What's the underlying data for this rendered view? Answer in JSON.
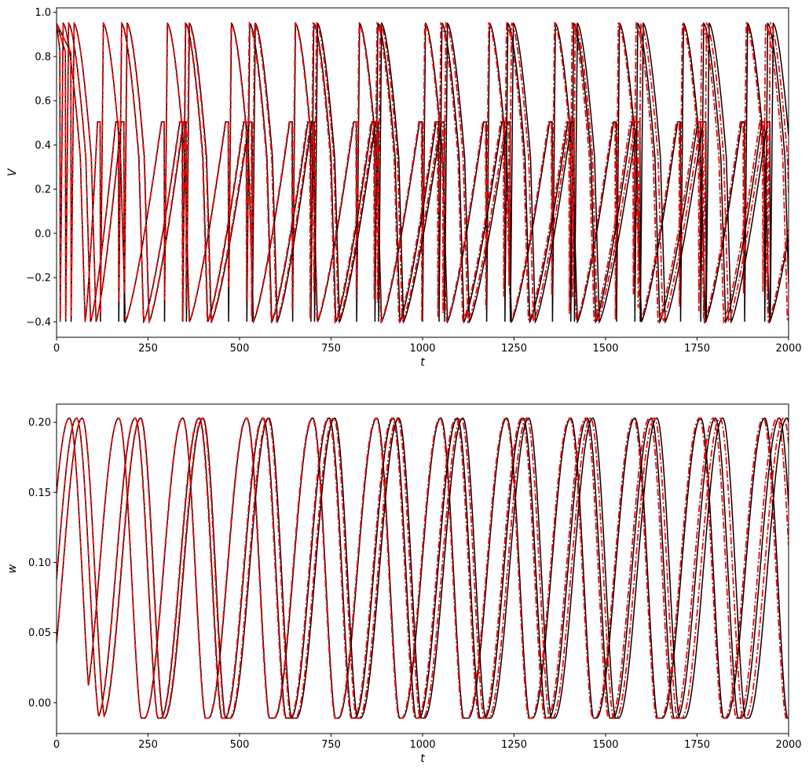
{
  "chart_data": [
    {
      "type": "line",
      "xlabel": "t",
      "ylabel": "V",
      "xlim": [
        0,
        2000
      ],
      "ylim": [
        -0.47,
        1.02
      ],
      "xticks": [
        0,
        250,
        500,
        750,
        1000,
        1250,
        1500,
        1750,
        2000
      ],
      "xtick_labels": [
        "0",
        "250",
        "500",
        "750",
        "1000",
        "1250",
        "1500",
        "1750",
        "2000"
      ],
      "yticks": [
        -0.4,
        -0.2,
        0.0,
        0.2,
        0.4,
        0.6,
        0.8,
        1.0
      ],
      "ytick_labels": [
        "−0.4",
        "−0.2",
        "0.0",
        "0.2",
        "0.4",
        "0.6",
        "0.8",
        "1.0"
      ],
      "grid": false,
      "legend": "none",
      "series_styles": [
        {
          "color": "#000000",
          "style": "solid"
        },
        {
          "color": "#ff0000",
          "style": "dash-dot"
        }
      ],
      "spike_peak_value": 0.95,
      "spike_trough_value": -0.4,
      "oscillator_traces": [
        {
          "spike_times": [
            10,
            120,
            295,
            470,
            645,
            820,
            1000,
            1175,
            1355,
            1530,
            1705,
            1880
          ],
          "period_drift": 0.996
        },
        {
          "spike_times": [
            25,
            170,
            345,
            520,
            695,
            870,
            1045,
            1225,
            1405,
            1580,
            1760,
            1935
          ],
          "period_drift": 0.994
        },
        {
          "spike_times": [
            40,
            185,
            355,
            535,
            705,
            880,
            1060,
            1240,
            1415,
            1595,
            1775,
            1950
          ],
          "period_drift": 0.992
        }
      ]
    },
    {
      "type": "line",
      "xlabel": "t",
      "ylabel": "w",
      "xlim": [
        0,
        2000
      ],
      "ylim": [
        -0.022,
        0.213
      ],
      "xticks": [
        0,
        250,
        500,
        750,
        1000,
        1250,
        1500,
        1750,
        2000
      ],
      "xtick_labels": [
        "0",
        "250",
        "500",
        "750",
        "1000",
        "1250",
        "1500",
        "1750",
        "2000"
      ],
      "yticks": [
        0.0,
        0.05,
        0.1,
        0.15,
        0.2
      ],
      "ytick_labels": [
        "0.00",
        "0.05",
        "0.10",
        "0.15",
        "0.20"
      ],
      "grid": false,
      "legend": "none",
      "series_styles": [
        {
          "color": "#000000",
          "style": "solid"
        },
        {
          "color": "#ff0000",
          "style": "dash-dot"
        }
      ],
      "recovery_peak_value": 0.203,
      "recovery_trough_value": -0.011,
      "oscillator_traces": [
        {
          "peak_times": [
            35,
            170,
            345,
            520,
            700,
            875,
            1050,
            1230,
            1405,
            1580,
            1760,
            1935
          ],
          "period_drift": 0.996
        },
        {
          "peak_times": [
            55,
            215,
            390,
            565,
            745,
            920,
            1095,
            1275,
            1450,
            1625,
            1800,
            1975
          ],
          "period_drift": 0.994
        },
        {
          "peak_times": [
            70,
            230,
            400,
            580,
            760,
            935,
            1110,
            1290,
            1465,
            1640,
            1820,
            1995
          ],
          "period_drift": 0.992
        }
      ]
    }
  ]
}
